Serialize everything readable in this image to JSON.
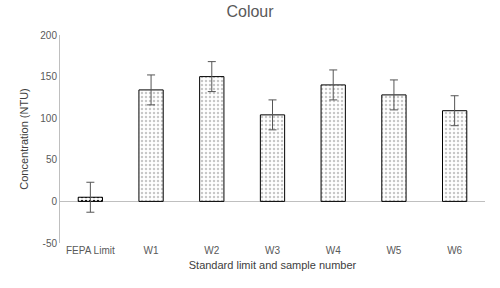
{
  "chart_data": {
    "type": "bar",
    "title": "Colour",
    "x_label": "Standard limit and sample number",
    "y_label": "Concentration (NTU)",
    "categories": [
      "FEPA Limit",
      "W1",
      "W2",
      "W3",
      "W4",
      "W5",
      "W6"
    ],
    "values": [
      5,
      134,
      150,
      104,
      140,
      128,
      109
    ],
    "errors": [
      18,
      18,
      18,
      18,
      18,
      18,
      18
    ],
    "colors": [
      "#1f1f1f",
      "#c8c8c8",
      "#c8c8c8",
      "#c8c8c8",
      "#c8c8c8",
      "#c8c8c8",
      "#c8c8c8"
    ],
    "ylim": [
      -50,
      200
    ],
    "yticks": [
      -50,
      0,
      50,
      100,
      150,
      200
    ],
    "grid": false
  }
}
